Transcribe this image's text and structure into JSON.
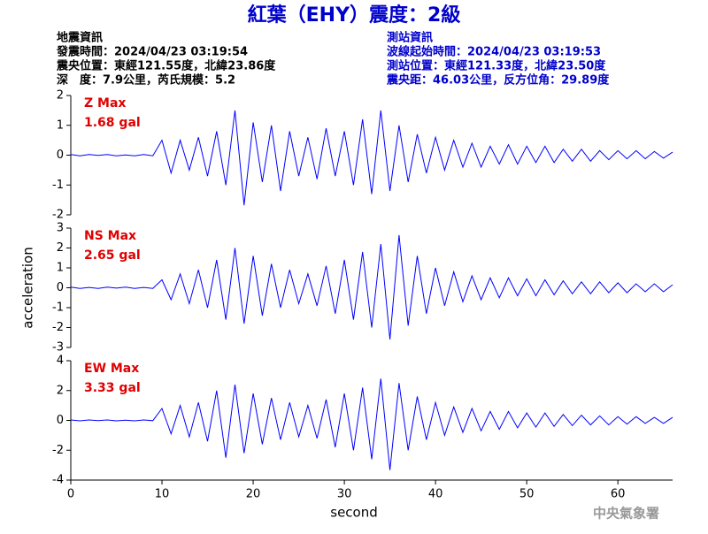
{
  "header": {
    "title": "紅葉（EHY）震度：2級",
    "left": [
      "地震資訊",
      "發震時間：2024/04/23 03:19:54",
      "震央位置：東經121.55度，北緯23.86度",
      "深　度：7.9公里，芮氏規模：5.2"
    ],
    "right": [
      "測站資訊",
      "波線起始時間：2024/04/23 03:19:53",
      "測站位置：東經121.33度，北緯23.50度",
      "震央距：46.03公里，反方位角：29.89度"
    ]
  },
  "watermark": "中央氣象署",
  "chart_data": [
    {
      "type": "line",
      "color": "#0000ff",
      "annotations": [
        "Z Max",
        "1.68 gal"
      ],
      "xlim": [
        0,
        66
      ],
      "ylim": [
        -2,
        2
      ],
      "yticks": [
        -2,
        -1,
        0,
        1,
        2
      ],
      "x": [
        0,
        1,
        2,
        3,
        4,
        5,
        6,
        7,
        8,
        9,
        10,
        11,
        12,
        13,
        14,
        15,
        16,
        17,
        18,
        19,
        20,
        21,
        22,
        23,
        24,
        25,
        26,
        27,
        28,
        29,
        30,
        31,
        32,
        33,
        34,
        35,
        36,
        37,
        38,
        39,
        40,
        41,
        42,
        43,
        44,
        45,
        46,
        47,
        48,
        49,
        50,
        51,
        52,
        53,
        54,
        55,
        56,
        57,
        58,
        59,
        60,
        61,
        62,
        63,
        64,
        65,
        66
      ],
      "values": [
        0.02,
        -0.02,
        0.02,
        -0.01,
        0.02,
        -0.02,
        0.01,
        -0.02,
        0.02,
        -0.02,
        0.5,
        -0.6,
        0.5,
        -0.5,
        0.6,
        -0.7,
        0.8,
        -1.0,
        1.5,
        -1.68,
        1.1,
        -0.9,
        1.0,
        -1.2,
        0.8,
        -0.7,
        0.6,
        -0.8,
        0.9,
        -0.7,
        0.8,
        -1.0,
        1.2,
        -1.3,
        1.5,
        -1.2,
        1.0,
        -0.9,
        0.7,
        -0.6,
        0.6,
        -0.5,
        0.5,
        -0.4,
        0.4,
        -0.4,
        0.3,
        -0.3,
        0.35,
        -0.3,
        0.3,
        -0.25,
        0.3,
        -0.25,
        0.2,
        -0.2,
        0.2,
        -0.2,
        0.15,
        -0.15,
        0.15,
        -0.12,
        0.15,
        -0.12,
        0.12,
        -0.1,
        0.1
      ]
    },
    {
      "type": "line",
      "color": "#0000ff",
      "annotations": [
        "NS Max",
        "2.65 gal"
      ],
      "ylabel": "acceleration",
      "xlim": [
        0,
        66
      ],
      "ylim": [
        -3,
        3
      ],
      "yticks": [
        -3,
        -2,
        -1,
        0,
        1,
        2,
        3
      ],
      "x": [
        0,
        1,
        2,
        3,
        4,
        5,
        6,
        7,
        8,
        9,
        10,
        11,
        12,
        13,
        14,
        15,
        16,
        17,
        18,
        19,
        20,
        21,
        22,
        23,
        24,
        25,
        26,
        27,
        28,
        29,
        30,
        31,
        32,
        33,
        34,
        35,
        36,
        37,
        38,
        39,
        40,
        41,
        42,
        43,
        44,
        45,
        46,
        47,
        48,
        49,
        50,
        51,
        52,
        53,
        54,
        55,
        56,
        57,
        58,
        59,
        60,
        61,
        62,
        63,
        64,
        65,
        66
      ],
      "values": [
        0.03,
        -0.03,
        0.02,
        -0.03,
        0.03,
        -0.02,
        0.03,
        -0.03,
        0.02,
        -0.03,
        0.4,
        -0.6,
        0.7,
        -0.8,
        0.9,
        -1.0,
        1.4,
        -1.6,
        2.0,
        -1.8,
        1.6,
        -1.4,
        1.2,
        -1.0,
        0.9,
        -0.8,
        0.7,
        -0.9,
        1.1,
        -1.3,
        1.4,
        -1.6,
        1.8,
        -2.0,
        2.2,
        -2.6,
        2.65,
        -1.9,
        1.6,
        -1.3,
        1.0,
        -0.9,
        0.8,
        -0.7,
        0.6,
        -0.6,
        0.5,
        -0.5,
        0.5,
        -0.4,
        0.45,
        -0.4,
        0.4,
        -0.35,
        0.35,
        -0.3,
        0.3,
        -0.3,
        0.3,
        -0.25,
        0.25,
        -0.25,
        0.2,
        -0.2,
        0.2,
        -0.2,
        0.15
      ]
    },
    {
      "type": "line",
      "color": "#0000ff",
      "annotations": [
        "EW Max",
        "3.33 gal"
      ],
      "xlabel": "second",
      "xlim": [
        0,
        66
      ],
      "xticks": [
        0,
        10,
        20,
        30,
        40,
        50,
        60
      ],
      "ylim": [
        -4,
        4
      ],
      "yticks": [
        -4,
        -2,
        0,
        2,
        4
      ],
      "x": [
        0,
        1,
        2,
        3,
        4,
        5,
        6,
        7,
        8,
        9,
        10,
        11,
        12,
        13,
        14,
        15,
        16,
        17,
        18,
        19,
        20,
        21,
        22,
        23,
        24,
        25,
        26,
        27,
        28,
        29,
        30,
        31,
        32,
        33,
        34,
        35,
        36,
        37,
        38,
        39,
        40,
        41,
        42,
        43,
        44,
        45,
        46,
        47,
        48,
        49,
        50,
        51,
        52,
        53,
        54,
        55,
        56,
        57,
        58,
        59,
        60,
        61,
        62,
        63,
        64,
        65,
        66
      ],
      "values": [
        0.03,
        -0.03,
        0.03,
        -0.02,
        0.03,
        -0.03,
        0.02,
        -0.03,
        0.03,
        -0.02,
        0.8,
        -0.9,
        1.0,
        -1.1,
        1.2,
        -1.4,
        2.0,
        -2.5,
        2.4,
        -2.2,
        1.8,
        -1.6,
        1.5,
        -1.3,
        1.2,
        -1.1,
        1.0,
        -1.2,
        1.4,
        -1.8,
        1.8,
        -2.0,
        2.2,
        -2.6,
        2.8,
        -3.33,
        2.5,
        -2.0,
        1.6,
        -1.3,
        1.2,
        -1.0,
        0.9,
        -0.8,
        0.8,
        -0.7,
        0.6,
        -0.6,
        0.6,
        -0.5,
        0.5,
        -0.45,
        0.5,
        -0.4,
        0.4,
        -0.35,
        0.35,
        -0.3,
        0.3,
        -0.3,
        0.25,
        -0.25,
        0.25,
        -0.2,
        0.2,
        -0.2,
        0.2
      ]
    }
  ]
}
